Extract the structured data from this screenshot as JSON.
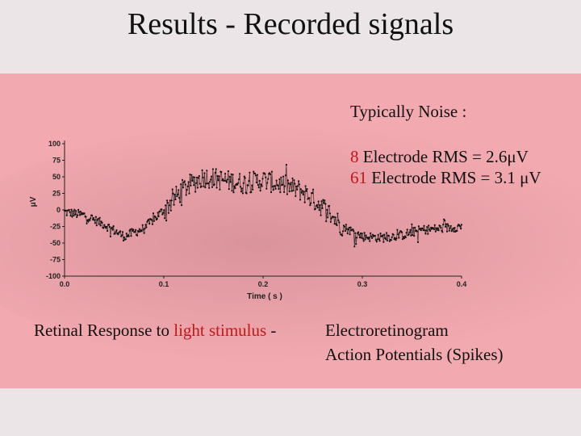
{
  "page": {
    "title": "Results - Recorded signals"
  },
  "noise": {
    "heading": "Typically Noise :",
    "lines": [
      {
        "number": "8",
        "text": " Electrode RMS = 2.6μV"
      },
      {
        "number": "61",
        "text": " Electrode RMS = 3.1 μV"
      }
    ]
  },
  "caption": {
    "left_prefix": "Retinal Response to ",
    "left_highlight": "light stimulus",
    "left_suffix": " - ",
    "right_lines": [
      "Electroretinogram",
      "Action Potentials (Spikes)"
    ]
  },
  "colors": {
    "highlight": "#c01818",
    "panel": "#f2a9b0",
    "trace": "#111111"
  },
  "chart_data": {
    "type": "scatter",
    "xlabel": "Time ( s )",
    "ylabel": "μV",
    "xlim": [
      0.0,
      0.4
    ],
    "ylim": [
      -100,
      100
    ],
    "x_ticks": [
      "0.0",
      "0.1",
      "0.2",
      "0.3",
      "0.4"
    ],
    "y_ticks": [
      "100",
      "75",
      "50",
      "25",
      "0",
      "-25",
      "-50",
      "-75",
      "-100"
    ],
    "grid": false,
    "envelope": {
      "t": [
        0.0,
        0.02,
        0.04,
        0.06,
        0.08,
        0.1,
        0.12,
        0.14,
        0.16,
        0.18,
        0.2,
        0.22,
        0.24,
        0.26,
        0.28,
        0.3,
        0.32,
        0.34,
        0.36,
        0.38,
        0.4
      ],
      "v": [
        -3,
        -8,
        -22,
        -40,
        -28,
        0,
        32,
        50,
        45,
        40,
        45,
        38,
        28,
        5,
        -25,
        -40,
        -42,
        -38,
        -30,
        -28,
        -25
      ]
    }
  }
}
